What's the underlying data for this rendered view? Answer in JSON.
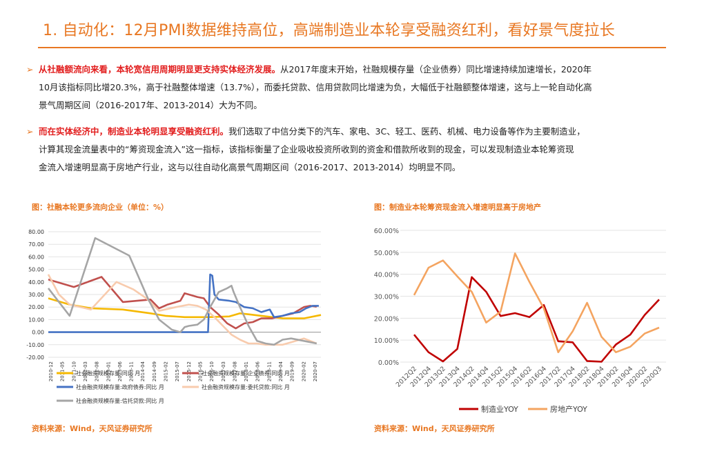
{
  "header": {
    "title": "1. 自动化：12月PMI数据维持高位，高端制造业本轮享受融资红利，看好景气度拉长"
  },
  "bullets": [
    {
      "arrow": "➢",
      "emphasis": "从社融额流向来看，本轮宽信用周期明显更支持实体经济发展。",
      "lines": [
        "从2017年度末开始，社融规模存量（企业债券）同比增速持续加速增长，2020年",
        "10月该指标同比增20.3%，高于社融整体增速（13.7%），而委托贷款、信用贷款同比增速为负，大幅低于社融额整体增速，这与上一轮自动化高",
        "景气周期区间（2016-2017年、2013-2014）大为不同。"
      ]
    },
    {
      "arrow": "➢",
      "emphasis": "而在实体经济中，制造业本轮明显享受融资红利。",
      "lines": [
        "我们选取了中信分类下的汽车、家电、3C、轻工、医药、机械、电力设备等作为主要制造业，",
        "计算其现金流量表中的“筹资现金流入”这一指标，该指标衡量了企业吸收投资所收到的资金和借款所收到的现金，可以发现制造业本轮筹资现",
        "金流入增速明显高于房地产行业，这与以往自动化高景气周期区间（2016-2017、2013-2014）均明显不同。"
      ]
    }
  ],
  "left_figure": {
    "caption": "图：社融本轮更多流向企业（单位：%）",
    "source": "资料来源：Wind，天风证券研究所"
  },
  "right_figure": {
    "caption": "图：制造业本轮筹资现金流入增速明显高于房地产",
    "source": "资料来源：Wind，天风证券研究所"
  },
  "chart_data": [
    {
      "type": "line",
      "ylim": [
        -20,
        80
      ],
      "yticks": [
        "-20.00",
        "-10.00",
        "0.00",
        "10.00",
        "20.00",
        "30.00",
        "40.00",
        "50.00",
        "60.00",
        "70.00",
        "80.00"
      ],
      "ytick_values": [
        -20,
        -10,
        0,
        10,
        20,
        30,
        40,
        50,
        60,
        70,
        80
      ],
      "x_range": [
        0,
        128
      ],
      "xticks": [
        "2010-12",
        "2011-05",
        "2011-10",
        "2012-03",
        "2012-08",
        "2013-01",
        "2013-06",
        "2013-11",
        "2014-04",
        "2014-09",
        "2015-02",
        "2015-07",
        "2015-12",
        "2016-05",
        "2016-10",
        "2017-03",
        "2017-08",
        "2018-01",
        "2018-06",
        "2018-11",
        "2019-04",
        "2019-09",
        "2020-02",
        "2020-07"
      ],
      "legend_position": "bottom",
      "series": [
        {
          "name": "社会融资规模存量:同比 月",
          "color": "#f5b800",
          "points": [
            [
              0,
              27
            ],
            [
              10,
              22
            ],
            [
              20,
              19
            ],
            [
              35,
              18
            ],
            [
              48,
              15
            ],
            [
              55,
              13
            ],
            [
              64,
              12
            ],
            [
              75,
              12
            ],
            [
              85,
              12.5
            ],
            [
              90,
              15
            ],
            [
              95,
              14
            ],
            [
              100,
              13
            ],
            [
              110,
              11
            ],
            [
              120,
              11
            ],
            [
              128,
              13.7
            ]
          ]
        },
        {
          "name": "社会融资规模存量:企业债券:同比 月",
          "color": "#c0504d",
          "points": [
            [
              0,
              42
            ],
            [
              12,
              36
            ],
            [
              25,
              44
            ],
            [
              35,
              24
            ],
            [
              48,
              26
            ],
            [
              52,
              19
            ],
            [
              56,
              22
            ],
            [
              62,
              25
            ],
            [
              64,
              31
            ],
            [
              66,
              30
            ],
            [
              70,
              28
            ],
            [
              73,
              27
            ],
            [
              76,
              20
            ],
            [
              80,
              14
            ],
            [
              84,
              7
            ],
            [
              88,
              3
            ],
            [
              92,
              7
            ],
            [
              96,
              8
            ],
            [
              100,
              11
            ],
            [
              105,
              11
            ],
            [
              110,
              13
            ],
            [
              115,
              15
            ],
            [
              120,
              20
            ],
            [
              123,
              21
            ],
            [
              126,
              20.3
            ]
          ]
        },
        {
          "name": "社会融资规模存量:政府债券:同比 月",
          "color": "#4472c4",
          "points": [
            [
              0,
              0
            ],
            [
              75,
              0
            ],
            [
              76,
              46
            ],
            [
              77,
              45
            ],
            [
              78,
              30
            ],
            [
              80,
              26
            ],
            [
              85,
              25
            ],
            [
              88,
              24
            ],
            [
              92,
              20
            ],
            [
              96,
              19
            ],
            [
              100,
              16
            ],
            [
              104,
              18
            ],
            [
              106,
              12
            ],
            [
              110,
              13
            ],
            [
              114,
              15
            ],
            [
              118,
              16
            ],
            [
              121,
              19
            ],
            [
              124,
              21
            ],
            [
              127,
              21
            ]
          ]
        },
        {
          "name": "社会融资规模存量:委托贷款:同比 月",
          "color": "#f8cbad",
          "points": [
            [
              0,
              46
            ],
            [
              5,
              30
            ],
            [
              10,
              22
            ],
            [
              20,
              18
            ],
            [
              32,
              40
            ],
            [
              40,
              34
            ],
            [
              46,
              27
            ],
            [
              52,
              17
            ],
            [
              60,
              20
            ],
            [
              66,
              22
            ],
            [
              70,
              21
            ],
            [
              74,
              18
            ],
            [
              78,
              12
            ],
            [
              82,
              5
            ],
            [
              86,
              -2
            ],
            [
              90,
              -6
            ],
            [
              94,
              -9
            ],
            [
              98,
              -9
            ],
            [
              102,
              -10
            ],
            [
              106,
              -10
            ],
            [
              110,
              -10
            ],
            [
              114,
              -8
            ],
            [
              120,
              -5
            ],
            [
              126,
              -9
            ]
          ]
        },
        {
          "name": "社会融资规模存量:信托贷款:同比 月",
          "color": "#a5a5a5",
          "points": [
            [
              0,
              35
            ],
            [
              10,
              13
            ],
            [
              22,
              75
            ],
            [
              38,
              61
            ],
            [
              47,
              26
            ],
            [
              52,
              10
            ],
            [
              58,
              2
            ],
            [
              62,
              0
            ],
            [
              64,
              4
            ],
            [
              66,
              5
            ],
            [
              70,
              6
            ],
            [
              73,
              10
            ],
            [
              76,
              20
            ],
            [
              80,
              32
            ],
            [
              84,
              35
            ],
            [
              86,
              37
            ],
            [
              87,
              32
            ],
            [
              90,
              20
            ],
            [
              94,
              5
            ],
            [
              98,
              -7
            ],
            [
              102,
              -9
            ],
            [
              106,
              -10
            ],
            [
              110,
              -6
            ],
            [
              114,
              -5
            ],
            [
              120,
              -7
            ],
            [
              126,
              -9
            ]
          ]
        }
      ]
    },
    {
      "type": "line",
      "ylim": [
        0,
        60
      ],
      "yticks": [
        "0.00%",
        "10.00%",
        "20.00%",
        "30.00%",
        "40.00%",
        "50.00%",
        "60.00%"
      ],
      "ytick_values": [
        0,
        10,
        20,
        30,
        40,
        50,
        60
      ],
      "categories": [
        "2012Q2",
        "2012Q4",
        "2013Q2",
        "2013Q4",
        "2014Q2",
        "2014Q4",
        "2015Q2",
        "2015Q4",
        "2016Q2",
        "2016Q4",
        "2017Q2",
        "2017Q4",
        "2018Q2",
        "2018Q4",
        "2019Q2",
        "2019Q4",
        "2020Q2",
        "2020Q3"
      ],
      "legend_position": "bottom",
      "series": [
        {
          "name": "制造业YOY",
          "color": "#c00000",
          "values": [
            12.5,
            4.5,
            0.3,
            6,
            38.7,
            32,
            21,
            22.3,
            20.5,
            26,
            9.5,
            9,
            0.5,
            0.2,
            8,
            12.5,
            21.5,
            28.5
          ]
        },
        {
          "name": "房地产YOY",
          "color": "#f4a460",
          "values": [
            30.5,
            43,
            46.3,
            39,
            32,
            18,
            23,
            49.5,
            36.5,
            24.5,
            4.5,
            14,
            27,
            11.5,
            4.5,
            7,
            13,
            15.7
          ]
        }
      ]
    }
  ]
}
